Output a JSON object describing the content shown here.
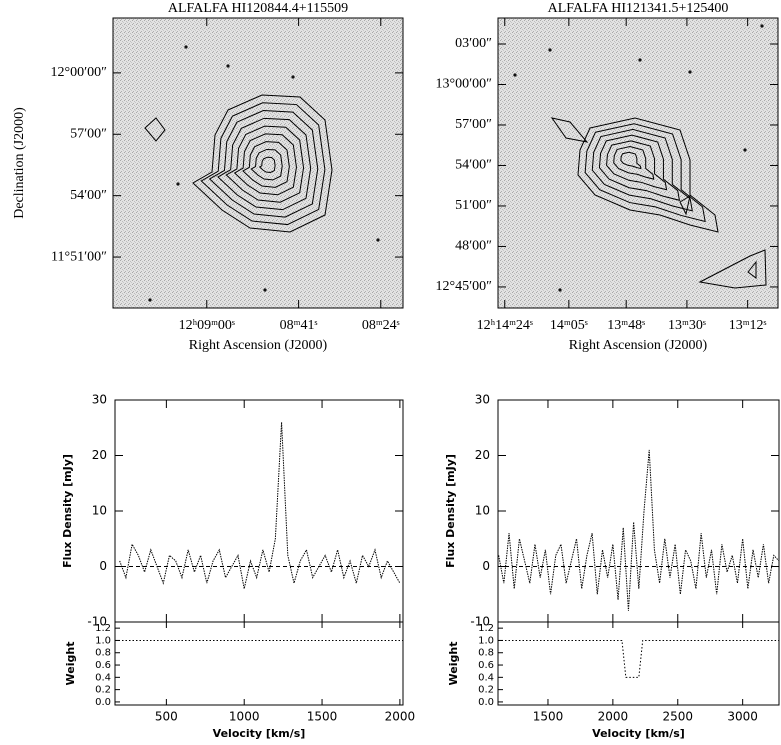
{
  "chart_data": [
    {
      "type": "contour",
      "title": "ALFALFA HI120844.4+115509",
      "xlabel": "Right Ascension (J2000)",
      "ylabel": "Declination (J2000)",
      "xlim": [
        559.4,
        499.4
      ],
      "xticks": [
        {
          "value": 540,
          "label": "12ʰ09ᵐ00ˢ"
        },
        {
          "value": 521,
          "label": "08ᵐ41ˢ"
        },
        {
          "value": 504,
          "label": "08ᵐ24ˢ"
        }
      ],
      "ylim": [
        11.8085,
        12.0447
      ],
      "yticks": [
        {
          "value": 12.0,
          "label": "12°00′00″"
        },
        {
          "value": 11.95,
          "label": "57′00″"
        },
        {
          "value": 11.9,
          "label": "54′00″"
        },
        {
          "value": 11.85,
          "label": "11°51′00″"
        }
      ]
    },
    {
      "type": "contour",
      "title": "ALFALFA HI121341.5+125400",
      "xlabel": "Right Ascension (J2000)",
      "xlim": [
        866,
        783
      ],
      "xticks": [
        {
          "value": 864,
          "label": "12ʰ14ᵐ24ˢ"
        },
        {
          "value": 845,
          "label": "14ᵐ05ˢ"
        },
        {
          "value": 828,
          "label": "13ᵐ48ˢ"
        },
        {
          "value": 810,
          "label": "13ᵐ30ˢ"
        },
        {
          "value": 792,
          "label": "13ᵐ12ˢ"
        }
      ],
      "ylim": [
        12.724,
        13.0821
      ],
      "yticks": [
        {
          "value": 13.05,
          "label": "03′00″"
        },
        {
          "value": 13.0,
          "label": "13°00′00″"
        },
        {
          "value": 12.95,
          "label": "57′00″"
        },
        {
          "value": 12.9,
          "label": "54′00″"
        },
        {
          "value": 12.85,
          "label": "51′00″"
        },
        {
          "value": 12.8,
          "label": "48′00″"
        },
        {
          "value": 12.75,
          "label": "12°45′00″"
        }
      ]
    },
    {
      "type": "line",
      "xlabel": "Velocity [km/s]",
      "ylabel": "Flux Density [mJy]",
      "xlim": [
        170,
        2020
      ],
      "xticks": [
        500,
        1000,
        1500,
        2000
      ],
      "ylim": [
        -10,
        30
      ],
      "yticks": [
        -10,
        0,
        10,
        20,
        30
      ],
      "series": [
        {
          "color": "#000000",
          "x": [
            200,
            240,
            280,
            320,
            360,
            400,
            440,
            480,
            520,
            560,
            600,
            640,
            680,
            720,
            760,
            800,
            840,
            880,
            920,
            960,
            1000,
            1040,
            1080,
            1120,
            1160,
            1200,
            1240,
            1280,
            1320,
            1360,
            1400,
            1440,
            1480,
            1520,
            1560,
            1600,
            1640,
            1680,
            1720,
            1760,
            1800,
            1840,
            1880,
            1920,
            1960,
            2000
          ],
          "values": [
            1,
            -2,
            4,
            2,
            -1,
            3,
            0,
            -3,
            2,
            1,
            -2,
            3,
            -1,
            2,
            -3,
            1,
            3,
            -2,
            0,
            2,
            -4,
            1,
            -2,
            3,
            -1,
            5,
            26,
            2,
            -3,
            1,
            3,
            -2,
            0,
            2,
            -1,
            3,
            -2,
            1,
            -3,
            2,
            0,
            3,
            -2,
            1,
            -1,
            -3
          ]
        }
      ],
      "weight": {
        "ylabel": "Weight",
        "ylim": [
          -0.05,
          1.3
        ],
        "yticks": [
          {
            "value": 0,
            "label": "0.0"
          },
          {
            "value": 0.2,
            "label": "0.2"
          },
          {
            "value": 0.4,
            "label": "0.4"
          },
          {
            "value": 0.6,
            "label": "0.6"
          },
          {
            "value": 0.8,
            "label": "0.8"
          },
          {
            "value": 1,
            "label": "1.0"
          },
          {
            "value": 1.2,
            "label": "1.2"
          }
        ],
        "x": [
          170,
          2020
        ],
        "values": [
          1,
          1
        ]
      }
    },
    {
      "type": "line",
      "xlabel": "Velocity [km/s]",
      "ylabel": "Flux Density [mJy]",
      "xlim": [
        1115,
        3280
      ],
      "xticks": [
        1500,
        2000,
        2500,
        3000
      ],
      "ylim": [
        -10,
        30
      ],
      "yticks": [
        -10,
        0,
        10,
        20,
        30
      ],
      "series": [
        {
          "color": "#000000",
          "x": [
            1120,
            1160,
            1200,
            1240,
            1280,
            1320,
            1360,
            1400,
            1440,
            1480,
            1520,
            1560,
            1600,
            1640,
            1680,
            1720,
            1760,
            1800,
            1840,
            1880,
            1920,
            1960,
            2000,
            2040,
            2080,
            2120,
            2160,
            2200,
            2240,
            2280,
            2320,
            2360,
            2400,
            2440,
            2480,
            2520,
            2560,
            2600,
            2640,
            2680,
            2720,
            2760,
            2800,
            2840,
            2880,
            2920,
            2960,
            3000,
            3040,
            3080,
            3120,
            3160,
            3200,
            3240,
            3280
          ],
          "values": [
            2,
            -3,
            6,
            -4,
            5,
            1,
            -3,
            4,
            -2,
            3,
            -5,
            2,
            4,
            -3,
            1,
            5,
            -4,
            2,
            6,
            -5,
            3,
            -2,
            4,
            -6,
            7,
            -8,
            8,
            -4,
            10,
            21,
            3,
            -3,
            5,
            -2,
            4,
            -5,
            3,
            1,
            -4,
            6,
            -2,
            3,
            -5,
            4,
            -1,
            2,
            -3,
            5,
            -4,
            3,
            -2,
            4,
            -3,
            2,
            1
          ]
        }
      ],
      "weight": {
        "ylabel": "Weight",
        "ylim": [
          -0.05,
          1.3
        ],
        "yticks": [
          {
            "value": 0,
            "label": "0.0"
          },
          {
            "value": 0.2,
            "label": "0.2"
          },
          {
            "value": 0.4,
            "label": "0.4"
          },
          {
            "value": 0.6,
            "label": "0.6"
          },
          {
            "value": 0.8,
            "label": "0.8"
          },
          {
            "value": 1,
            "label": "1.0"
          },
          {
            "value": 1.2,
            "label": "1.2"
          }
        ],
        "x": [
          1115,
          2070,
          2100,
          2200,
          2230,
          3280
        ],
        "values": [
          1,
          1,
          0.4,
          0.4,
          1,
          1
        ]
      }
    }
  ]
}
